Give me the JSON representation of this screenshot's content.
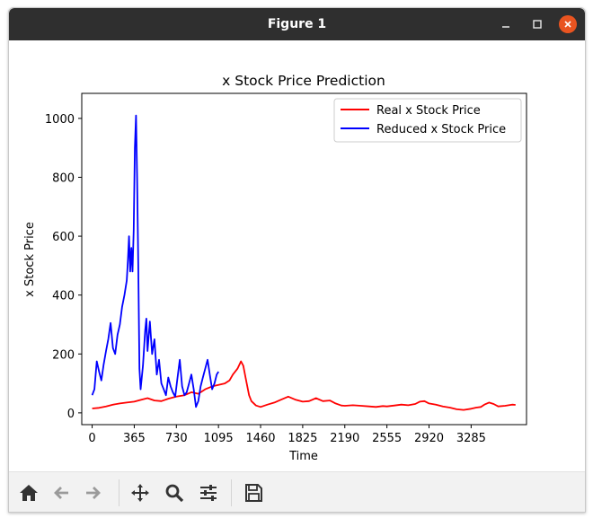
{
  "window": {
    "title": "Figure 1"
  },
  "toolbar": {
    "buttons": [
      {
        "name": "home-button",
        "icon": "home-icon",
        "enabled": true
      },
      {
        "name": "back-button",
        "icon": "arrow-left-icon",
        "enabled": false
      },
      {
        "name": "forward-button",
        "icon": "arrow-right-icon",
        "enabled": false
      },
      {
        "name": "pan-button",
        "icon": "move-icon",
        "enabled": true
      },
      {
        "name": "zoom-button",
        "icon": "magnifier-icon",
        "enabled": true
      },
      {
        "name": "subplots-button",
        "icon": "sliders-icon",
        "enabled": true
      },
      {
        "name": "save-button",
        "icon": "floppy-disk-icon",
        "enabled": true
      }
    ]
  },
  "colors": {
    "real": "#ff0000",
    "reduced": "#0000ff",
    "titlebar": "#2f2f2f",
    "close": "#e95420"
  },
  "chart_data": {
    "type": "line",
    "title": "x Stock Price Prediction",
    "xlabel": "Time",
    "ylabel": "x Stock Price",
    "xlim": [
      -90,
      3765
    ],
    "ylim": [
      -40,
      1085
    ],
    "xticks": [
      0,
      365,
      730,
      1095,
      1460,
      1825,
      2190,
      2555,
      2920,
      3285
    ],
    "yticks": [
      0,
      200,
      400,
      600,
      800,
      1000
    ],
    "legend": {
      "placement": "upper right"
    },
    "grid": false,
    "series": [
      {
        "name": "Real x Stock Price",
        "color": "#ff0000",
        "points": [
          [
            0,
            15
          ],
          [
            60,
            17
          ],
          [
            120,
            22
          ],
          [
            180,
            28
          ],
          [
            240,
            32
          ],
          [
            300,
            35
          ],
          [
            365,
            38
          ],
          [
            430,
            45
          ],
          [
            480,
            50
          ],
          [
            540,
            42
          ],
          [
            600,
            40
          ],
          [
            660,
            48
          ],
          [
            730,
            55
          ],
          [
            800,
            60
          ],
          [
            860,
            70
          ],
          [
            920,
            65
          ],
          [
            980,
            80
          ],
          [
            1040,
            90
          ],
          [
            1095,
            95
          ],
          [
            1150,
            100
          ],
          [
            1190,
            110
          ],
          [
            1220,
            130
          ],
          [
            1260,
            150
          ],
          [
            1290,
            175
          ],
          [
            1310,
            160
          ],
          [
            1330,
            120
          ],
          [
            1360,
            60
          ],
          [
            1380,
            40
          ],
          [
            1420,
            25
          ],
          [
            1460,
            20
          ],
          [
            1520,
            28
          ],
          [
            1580,
            35
          ],
          [
            1640,
            45
          ],
          [
            1700,
            55
          ],
          [
            1760,
            45
          ],
          [
            1825,
            38
          ],
          [
            1880,
            40
          ],
          [
            1940,
            50
          ],
          [
            2000,
            40
          ],
          [
            2060,
            42
          ],
          [
            2110,
            32
          ],
          [
            2160,
            25
          ],
          [
            2190,
            24
          ],
          [
            2260,
            26
          ],
          [
            2330,
            24
          ],
          [
            2400,
            22
          ],
          [
            2460,
            20
          ],
          [
            2520,
            23
          ],
          [
            2555,
            22
          ],
          [
            2620,
            25
          ],
          [
            2680,
            28
          ],
          [
            2740,
            26
          ],
          [
            2800,
            30
          ],
          [
            2840,
            38
          ],
          [
            2880,
            40
          ],
          [
            2920,
            32
          ],
          [
            2980,
            28
          ],
          [
            3040,
            22
          ],
          [
            3100,
            18
          ],
          [
            3160,
            12
          ],
          [
            3220,
            10
          ],
          [
            3285,
            14
          ],
          [
            3330,
            18
          ],
          [
            3370,
            20
          ],
          [
            3400,
            28
          ],
          [
            3440,
            35
          ],
          [
            3480,
            30
          ],
          [
            3520,
            22
          ],
          [
            3580,
            24
          ],
          [
            3640,
            28
          ],
          [
            3670,
            27
          ]
        ]
      },
      {
        "name": "Reduced x Stock Price",
        "color": "#0000ff",
        "points": [
          [
            0,
            60
          ],
          [
            20,
            80
          ],
          [
            40,
            175
          ],
          [
            60,
            140
          ],
          [
            80,
            110
          ],
          [
            100,
            165
          ],
          [
            120,
            210
          ],
          [
            140,
            250
          ],
          [
            160,
            305
          ],
          [
            180,
            220
          ],
          [
            200,
            200
          ],
          [
            220,
            265
          ],
          [
            240,
            300
          ],
          [
            260,
            360
          ],
          [
            280,
            400
          ],
          [
            300,
            450
          ],
          [
            310,
            520
          ],
          [
            320,
            600
          ],
          [
            330,
            480
          ],
          [
            340,
            560
          ],
          [
            350,
            480
          ],
          [
            360,
            620
          ],
          [
            370,
            900
          ],
          [
            380,
            1010
          ],
          [
            390,
            800
          ],
          [
            400,
            500
          ],
          [
            410,
            150
          ],
          [
            420,
            80
          ],
          [
            440,
            160
          ],
          [
            460,
            280
          ],
          [
            470,
            320
          ],
          [
            480,
            210
          ],
          [
            490,
            260
          ],
          [
            500,
            310
          ],
          [
            520,
            200
          ],
          [
            540,
            250
          ],
          [
            560,
            130
          ],
          [
            580,
            180
          ],
          [
            600,
            100
          ],
          [
            620,
            80
          ],
          [
            640,
            60
          ],
          [
            660,
            120
          ],
          [
            680,
            90
          ],
          [
            700,
            70
          ],
          [
            720,
            55
          ],
          [
            740,
            120
          ],
          [
            760,
            180
          ],
          [
            780,
            90
          ],
          [
            800,
            60
          ],
          [
            820,
            70
          ],
          [
            840,
            100
          ],
          [
            860,
            130
          ],
          [
            880,
            80
          ],
          [
            900,
            20
          ],
          [
            920,
            40
          ],
          [
            940,
            90
          ],
          [
            960,
            120
          ],
          [
            980,
            150
          ],
          [
            1000,
            180
          ],
          [
            1020,
            130
          ],
          [
            1040,
            80
          ],
          [
            1060,
            100
          ],
          [
            1080,
            130
          ],
          [
            1095,
            140
          ]
        ]
      }
    ]
  }
}
